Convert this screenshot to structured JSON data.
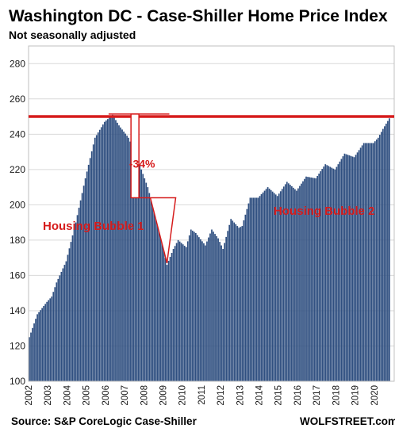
{
  "colors": {
    "bar": "#2f4f80",
    "reference_line": "#d61c1c",
    "annotation": "#d61c1c",
    "grid": "#d9d9d9"
  },
  "chart_data": {
    "type": "bar",
    "title": "Washington DC - Case-Shiller Home Price Index",
    "subtitle": "Not seasonally adjusted",
    "xlabel": "",
    "ylabel": "",
    "ylim": [
      100,
      290
    ],
    "yticks": [
      "100",
      "120",
      "140",
      "160",
      "180",
      "200",
      "220",
      "240",
      "260",
      "280"
    ],
    "xticks": [
      "2002",
      "2003",
      "2004",
      "2005",
      "2006",
      "2007",
      "2008",
      "2009",
      "2010",
      "2011",
      "2012",
      "2013",
      "2014",
      "2015",
      "2016",
      "2017",
      "2018",
      "2019",
      "2020"
    ],
    "grid": "horizontal",
    "frequency": "monthly",
    "anchors": [
      [
        "2002-01",
        125
      ],
      [
        "2002-06",
        138
      ],
      [
        "2002-12",
        145
      ],
      [
        "2003-03",
        148
      ],
      [
        "2003-06",
        156
      ],
      [
        "2003-12",
        168
      ],
      [
        "2004-06",
        190
      ],
      [
        "2004-12",
        215
      ],
      [
        "2005-06",
        238
      ],
      [
        "2005-12",
        247
      ],
      [
        "2006-05",
        251
      ],
      [
        "2006-09",
        245
      ],
      [
        "2007-03",
        238
      ],
      [
        "2007-09",
        225
      ],
      [
        "2008-03",
        210
      ],
      [
        "2008-09",
        190
      ],
      [
        "2009-03",
        166
      ],
      [
        "2009-07",
        175
      ],
      [
        "2009-10",
        180
      ],
      [
        "2010-03",
        176
      ],
      [
        "2010-06",
        186
      ],
      [
        "2010-09",
        184
      ],
      [
        "2011-03",
        177
      ],
      [
        "2011-07",
        186
      ],
      [
        "2011-11",
        181
      ],
      [
        "2012-02",
        175
      ],
      [
        "2012-07",
        192
      ],
      [
        "2012-12",
        187
      ],
      [
        "2013-02",
        188
      ],
      [
        "2013-07",
        204
      ],
      [
        "2013-12",
        204
      ],
      [
        "2014-06",
        210
      ],
      [
        "2014-12",
        205
      ],
      [
        "2015-06",
        213
      ],
      [
        "2015-12",
        208
      ],
      [
        "2016-06",
        216
      ],
      [
        "2016-12",
        215
      ],
      [
        "2017-06",
        223
      ],
      [
        "2017-12",
        220
      ],
      [
        "2018-06",
        229
      ],
      [
        "2018-12",
        227
      ],
      [
        "2019-06",
        235
      ],
      [
        "2019-12",
        235
      ],
      [
        "2020-03",
        238
      ],
      [
        "2020-06",
        243
      ],
      [
        "2020-10",
        249
      ]
    ],
    "reference_line": {
      "value": 250
    },
    "annotations": [
      {
        "text": "-34%",
        "from": "2006-05",
        "to": "2009-03"
      },
      {
        "text": "Housing Bubble 1"
      },
      {
        "text": "Housing Bubble 2"
      }
    ]
  },
  "footer": {
    "source": "Source: S&P CoreLogic Case-Shiller",
    "brand": "WOLFSTREET.com"
  }
}
